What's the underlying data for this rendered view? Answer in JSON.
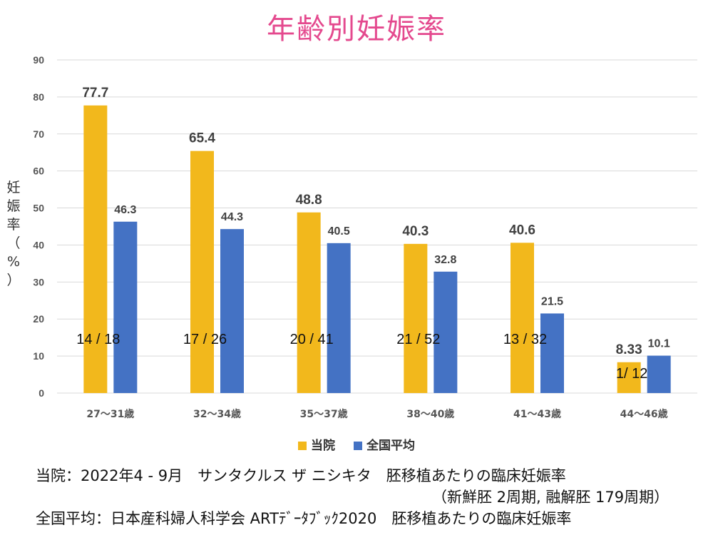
{
  "title": "年齢別妊娠率",
  "ylabel_chars": [
    "妊",
    "娠",
    "率",
    "（",
    "%",
    "）"
  ],
  "legend": [
    {
      "label": "当院",
      "color": "#f2b81c"
    },
    {
      "label": "全国平均",
      "color": "#4472c4"
    }
  ],
  "chart_data": {
    "type": "bar",
    "title": "年齢別妊娠率",
    "ylabel": "妊娠率（%）",
    "xlabel": "",
    "ylim": [
      0,
      90
    ],
    "yticks": [
      0,
      10,
      20,
      30,
      40,
      50,
      60,
      70,
      80,
      90
    ],
    "grid": true,
    "legend_position": "bottom",
    "categories": [
      "27〜31歳",
      "32〜34歳",
      "35〜37歳",
      "38〜40歳",
      "41〜43歳",
      "44〜46歳"
    ],
    "series": [
      {
        "name": "当院",
        "color": "#f2b81c",
        "values": [
          77.7,
          65.4,
          48.8,
          40.3,
          40.6,
          8.33
        ],
        "labels": [
          "77.7",
          "65.4",
          "48.8",
          "40.3",
          "40.6",
          "8.33"
        ]
      },
      {
        "name": "全国平均",
        "color": "#4472c4",
        "values": [
          46.3,
          44.3,
          40.5,
          32.8,
          21.5,
          10.1
        ],
        "labels": [
          "46.3",
          "44.3",
          "40.5",
          "32.8",
          "21.5",
          "10.1"
        ]
      }
    ],
    "annotations": [
      "14 / 18",
      "17 / 26",
      "20 / 41",
      "21 / 52",
      "13 / 32",
      "1/ 12"
    ]
  },
  "notes": {
    "line1": "当院：2022年4 - 9月　サンタクルス ザ ニシキタ　胚移植あたりの臨床妊娠率",
    "line2": "（新鮮胚 2周期, 融解胚 179周期）",
    "line3": "全国平均：日本産科婦人科学会 ARTﾃﾞｰﾀﾌﾞｯｸ2020　胚移植あたりの臨床妊娠率"
  }
}
